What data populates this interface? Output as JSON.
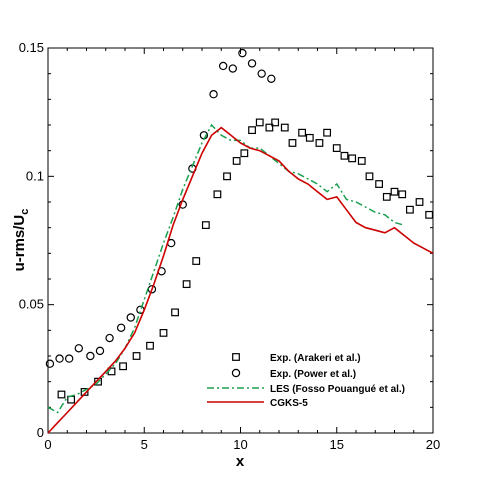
{
  "chart_data": {
    "type": "line",
    "xlabel": "x",
    "ylabel": "u-rms/U",
    "ylabel_subscript": "c",
    "xlim": [
      0,
      20
    ],
    "ylim": [
      0,
      0.15
    ],
    "xticks": [
      0,
      5,
      10,
      15,
      20
    ],
    "xtick_labels": [
      "0",
      "5",
      "10",
      "15",
      "20"
    ],
    "yticks": [
      0,
      0.05,
      0.1,
      0.15
    ],
    "ytick_labels": [
      "0",
      "0.05",
      "0.1",
      "0.15"
    ],
    "grid": false,
    "legend_position": "bottom-right",
    "series": [
      {
        "name": "Exp. (Arakeri et al.)",
        "style": "open-square-markers",
        "color": "#000000",
        "x": [
          0.7,
          1.2,
          1.9,
          2.6,
          3.3,
          3.9,
          4.6,
          5.3,
          6.0,
          6.6,
          7.2,
          7.7,
          8.2,
          8.8,
          9.3,
          9.8,
          10.2,
          10.6,
          11.0,
          11.5,
          11.8,
          12.3,
          12.7,
          13.2,
          13.6,
          14.1,
          14.5,
          15.0,
          15.4,
          15.8,
          16.3,
          16.7,
          17.2,
          17.6,
          18.0,
          18.4,
          18.8,
          19.3,
          19.8
        ],
        "y": [
          0.015,
          0.013,
          0.016,
          0.02,
          0.024,
          0.026,
          0.03,
          0.034,
          0.039,
          0.047,
          0.058,
          0.067,
          0.081,
          0.093,
          0.1,
          0.106,
          0.109,
          0.118,
          0.121,
          0.119,
          0.121,
          0.119,
          0.113,
          0.117,
          0.115,
          0.113,
          0.117,
          0.111,
          0.108,
          0.107,
          0.106,
          0.1,
          0.097,
          0.092,
          0.094,
          0.093,
          0.087,
          0.09,
          0.085
        ]
      },
      {
        "name": "Exp. (Power et al.)",
        "style": "open-circle-markers",
        "color": "#000000",
        "x": [
          0.1,
          0.6,
          1.1,
          1.6,
          2.2,
          2.7,
          3.2,
          3.8,
          4.3,
          4.8,
          5.4,
          5.9,
          6.4,
          7.0,
          7.5,
          8.1,
          8.6,
          9.1,
          9.6,
          10.1,
          10.6,
          11.1,
          11.6
        ],
        "y": [
          0.027,
          0.029,
          0.029,
          0.033,
          0.03,
          0.032,
          0.037,
          0.041,
          0.045,
          0.048,
          0.056,
          0.063,
          0.074,
          0.089,
          0.103,
          0.116,
          0.132,
          0.143,
          0.142,
          0.148,
          0.144,
          0.14,
          0.138
        ]
      },
      {
        "name": "LES (Fosso Pouangué et al.)",
        "style": "dash-dot-line",
        "color": "#1aa04e",
        "x": [
          0,
          0.5,
          1.0,
          1.5,
          2.0,
          2.5,
          3.0,
          3.5,
          4.0,
          4.5,
          5.0,
          5.5,
          6.0,
          6.5,
          7.0,
          7.5,
          8.0,
          8.5,
          9.0,
          9.5,
          10.0,
          10.5,
          11.0,
          11.5,
          12.0,
          12.5,
          13.0,
          13.5,
          14.0,
          14.5,
          15.0,
          15.5,
          16.0,
          16.5,
          17.0,
          17.5,
          18.0,
          18.5
        ],
        "y": [
          0.01,
          0.008,
          0.014,
          0.015,
          0.017,
          0.019,
          0.023,
          0.027,
          0.033,
          0.041,
          0.052,
          0.063,
          0.074,
          0.084,
          0.095,
          0.104,
          0.113,
          0.12,
          0.116,
          0.114,
          0.114,
          0.111,
          0.111,
          0.108,
          0.105,
          0.102,
          0.101,
          0.099,
          0.097,
          0.094,
          0.097,
          0.091,
          0.09,
          0.088,
          0.086,
          0.085,
          0.082,
          0.081
        ]
      },
      {
        "name": "CGKS-5",
        "style": "solid-line",
        "color": "#cc0000",
        "x": [
          0,
          0.5,
          1.0,
          1.5,
          2.0,
          2.5,
          3.0,
          3.5,
          4.0,
          4.5,
          5.0,
          5.5,
          6.0,
          6.5,
          7.0,
          7.5,
          8.0,
          8.5,
          9.0,
          9.5,
          10.0,
          10.5,
          11.0,
          11.5,
          12.0,
          12.5,
          13.0,
          13.5,
          14.0,
          14.5,
          15.0,
          15.5,
          16.0,
          16.5,
          17.0,
          17.5,
          18.0,
          18.5,
          19.0,
          19.5,
          20.0
        ],
        "y": [
          0,
          0.004,
          0.008,
          0.012,
          0.016,
          0.02,
          0.024,
          0.028,
          0.033,
          0.039,
          0.048,
          0.058,
          0.069,
          0.081,
          0.091,
          0.1,
          0.109,
          0.116,
          0.119,
          0.116,
          0.113,
          0.111,
          0.11,
          0.108,
          0.106,
          0.102,
          0.099,
          0.097,
          0.094,
          0.091,
          0.092,
          0.087,
          0.082,
          0.08,
          0.079,
          0.078,
          0.08,
          0.077,
          0.074,
          0.072,
          0.07
        ]
      }
    ]
  }
}
